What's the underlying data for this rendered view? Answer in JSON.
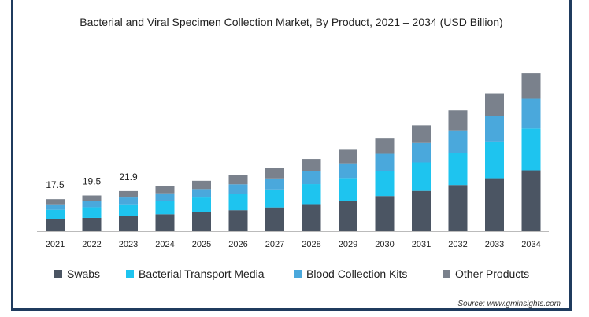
{
  "chart_data": {
    "type": "bar",
    "stacked": true,
    "title": "Bacterial and Viral Specimen Collection Market, By Product, 2021 – 2034 (USD Billion)",
    "xlabel": "",
    "ylabel": "",
    "categories": [
      "2021",
      "2022",
      "2023",
      "2024",
      "2025",
      "2026",
      "2027",
      "2028",
      "2029",
      "2030",
      "2031",
      "2032",
      "2033",
      "2034"
    ],
    "series": [
      {
        "name": "Swabs",
        "color": "#4b5563",
        "values": [
          6.5,
          7.3,
          8.3,
          9.3,
          10.4,
          11.5,
          13.0,
          14.8,
          16.7,
          19.2,
          22.0,
          25.2,
          28.9,
          33.2
        ]
      },
      {
        "name": "Bacterial Transport Media",
        "color": "#1ec4ef",
        "values": [
          5.2,
          5.8,
          6.4,
          7.2,
          8.0,
          8.8,
          9.8,
          10.9,
          12.3,
          13.8,
          15.5,
          17.6,
          20.0,
          22.8
        ]
      },
      {
        "name": "Blood Collection Kits",
        "color": "#4aa8dc",
        "values": [
          3.0,
          3.4,
          3.7,
          4.2,
          4.6,
          5.3,
          6.0,
          7.0,
          8.0,
          9.2,
          10.6,
          12.2,
          14.1,
          16.2
        ]
      },
      {
        "name": "Other Products",
        "color": "#7a818c",
        "values": [
          2.8,
          3.0,
          3.5,
          3.9,
          4.5,
          5.2,
          5.8,
          6.7,
          7.4,
          8.3,
          9.6,
          10.9,
          12.2,
          13.9
        ]
      }
    ],
    "data_labels": [
      {
        "category": "2021",
        "text": "17.5"
      },
      {
        "category": "2022",
        "text": "19.5"
      },
      {
        "category": "2023",
        "text": "21.9"
      }
    ],
    "ylim": [
      0,
      90
    ],
    "grid": false,
    "legend_position": "bottom",
    "source": "Source: www.gminsights.com"
  }
}
